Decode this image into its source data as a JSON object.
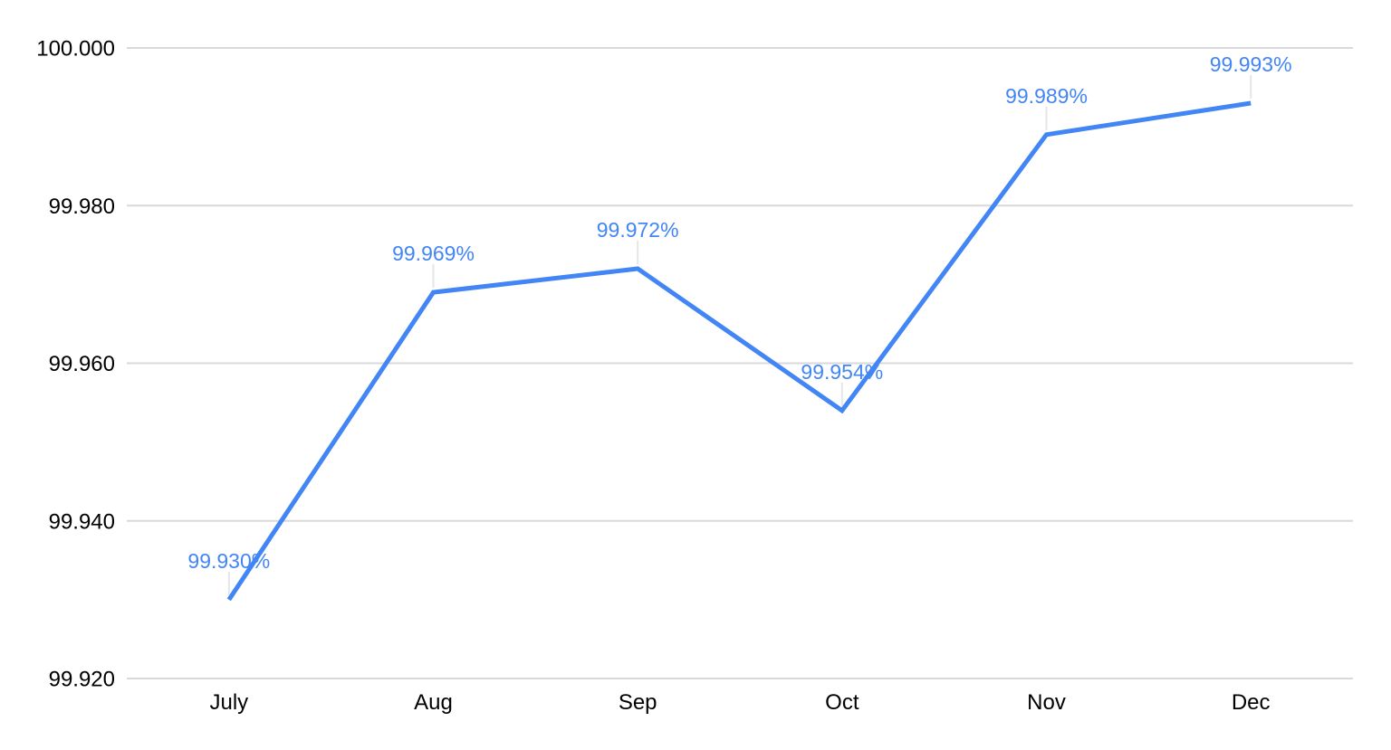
{
  "chart_style": {
    "background_color": "#ffffff",
    "line_color": "#4285f4",
    "data_label_color": "#4285f4",
    "grid_color": "#d9d9d9",
    "axis_line_color": "#d9d9d9",
    "leader_line_color": "#e6e6e6",
    "axis_text_color": "#000000"
  },
  "chart_data": {
    "type": "line",
    "title": "",
    "xlabel": "",
    "ylabel": "",
    "categories": [
      "July",
      "Aug",
      "Sep",
      "Oct",
      "Nov",
      "Dec"
    ],
    "series": [
      {
        "name": "",
        "values": [
          99.93,
          99.969,
          99.972,
          99.954,
          99.989,
          99.993
        ],
        "point_labels": [
          "99.930%",
          "99.969%",
          "99.972%",
          "99.954%",
          "99.989%",
          "99.993%"
        ]
      }
    ],
    "ylim": [
      99.92,
      100.0
    ],
    "yticks": [
      100.0,
      99.98,
      99.96,
      99.94,
      99.92
    ],
    "ytick_labels": [
      "100.000",
      "99.980",
      "99.960",
      "99.940",
      "99.920"
    ],
    "grid": true,
    "legend_position": "none",
    "markers": false
  }
}
